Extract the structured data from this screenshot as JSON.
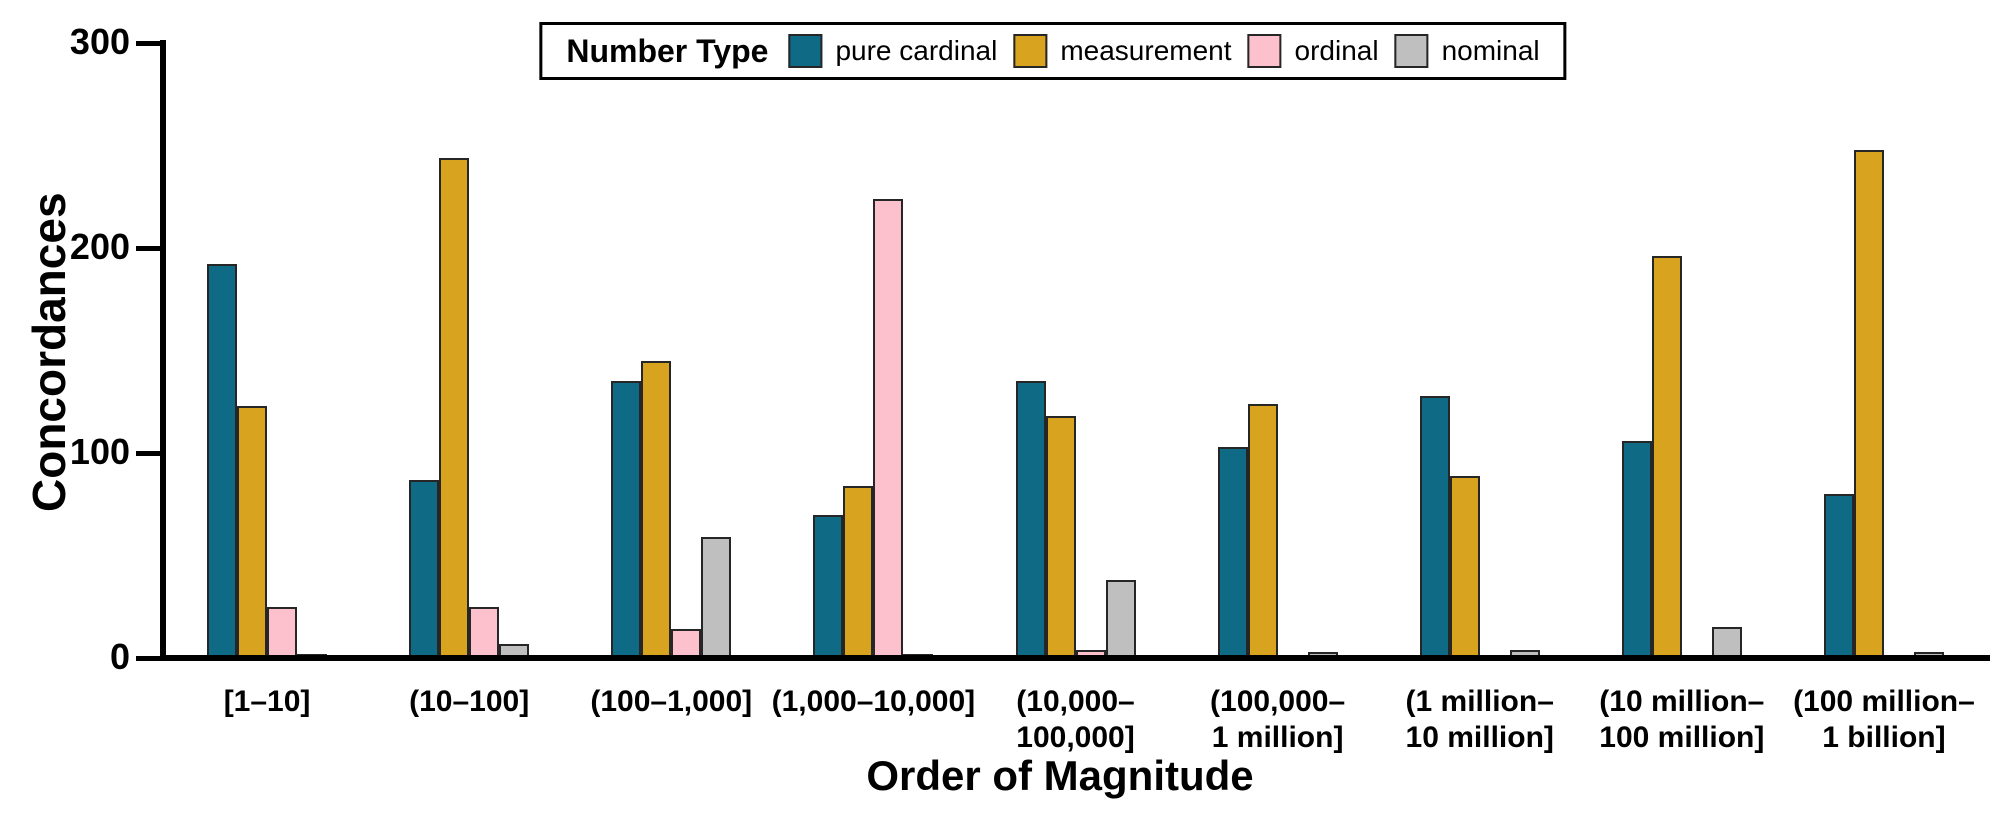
{
  "figure": {
    "background": "#ffffff"
  },
  "chart_data": {
    "type": "bar",
    "title": "",
    "xlabel": "Order of Magnitude",
    "ylabel": "Concordances",
    "ylim": [
      0,
      300
    ],
    "yticks": [
      0,
      100,
      200,
      300
    ],
    "grid": false,
    "legend_title": "Number Type",
    "legend_position": "top-center",
    "bar_edge_color": "#262626",
    "categories": [
      "[1–10]",
      "(10–100]",
      "(100–1,000]",
      "(1,000–10,000]",
      "(10,000–\n100,000]",
      "(100,000–\n1 million]",
      "(1 million–\n10 million]",
      "(10 million–\n100 million]",
      "(100 million–\n1 billion]"
    ],
    "series": [
      {
        "name": "pure cardinal",
        "color": "#0f6a85",
        "values": [
          192,
          87,
          135,
          70,
          135,
          103,
          128,
          106,
          80
        ]
      },
      {
        "name": "measurement",
        "color": "#d8a420",
        "values": [
          123,
          244,
          145,
          84,
          118,
          124,
          89,
          196,
          248
        ]
      },
      {
        "name": "ordinal",
        "color": "#fcc1cd",
        "values": [
          25,
          25,
          14,
          224,
          4,
          0,
          0,
          0,
          0
        ]
      },
      {
        "name": "nominal",
        "color": "#bfbfbf",
        "values": [
          2,
          7,
          59,
          2,
          38,
          3,
          4,
          15,
          3
        ]
      }
    ]
  }
}
